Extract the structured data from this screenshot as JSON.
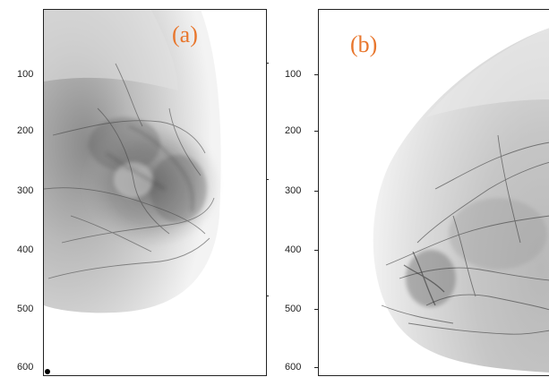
{
  "panels": [
    {
      "label": "(a)",
      "y_ticks": [
        "100",
        "200",
        "300",
        "400",
        "500",
        "600"
      ]
    },
    {
      "label": "(b)",
      "y_ticks": [
        "100",
        "200",
        "300",
        "400",
        "500",
        "600"
      ]
    }
  ],
  "colors": {
    "label": "#e8772e",
    "frame": "#222222"
  }
}
